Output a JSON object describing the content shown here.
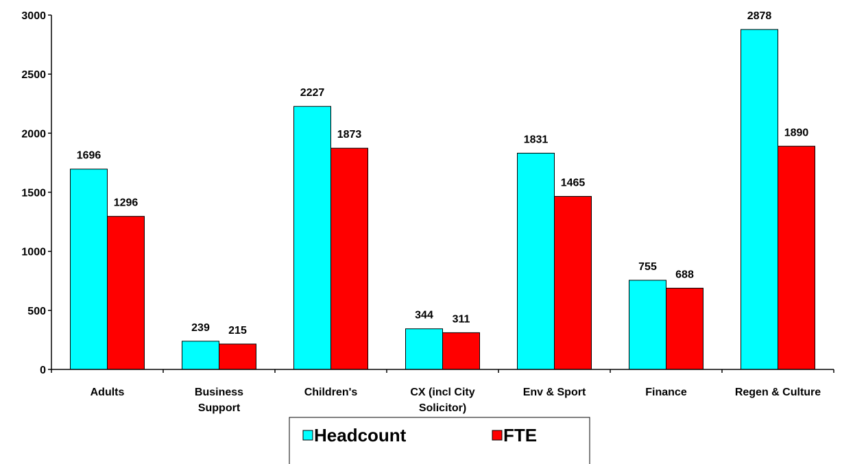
{
  "chart_data": {
    "type": "bar",
    "categories": [
      "Adults",
      "Business\nSupport",
      "Children's",
      "CX (incl City\nSolicitor)",
      "Env & Sport",
      "Finance",
      "Regen & Culture"
    ],
    "series": [
      {
        "name": "Headcount",
        "color": "#00ffff",
        "values": [
          1696,
          239,
          2227,
          344,
          1831,
          755,
          2878
        ]
      },
      {
        "name": "FTE",
        "color": "#ff0000",
        "values": [
          1296,
          215,
          1873,
          311,
          1465,
          688,
          1890
        ]
      }
    ],
    "ylim": [
      0,
      3000
    ],
    "yticks": [
      0,
      500,
      1000,
      1500,
      2000,
      2500,
      3000
    ],
    "grid": false,
    "legend": "bottom"
  }
}
